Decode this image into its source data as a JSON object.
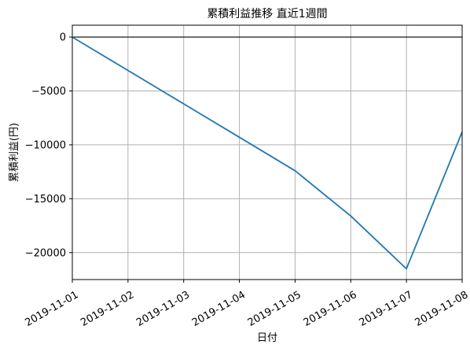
{
  "chart_data": {
    "type": "line",
    "title": "累積利益推移 直近1週間",
    "xlabel": "日付",
    "ylabel": "累積利益(円)",
    "x": [
      "2019-11-01",
      "2019-11-02",
      "2019-11-03",
      "2019-11-04",
      "2019-11-05",
      "2019-11-06",
      "2019-11-07",
      "2019-11-08"
    ],
    "series": [
      {
        "values": [
          0,
          -3100,
          -6200,
          -9300,
          -12400,
          -16600,
          -21500,
          -8800
        ],
        "color": "#1f77b4"
      }
    ],
    "ylim": [
      -22500,
      1100
    ],
    "yticks": [
      0,
      -5000,
      -10000,
      -15000,
      -20000
    ],
    "ytick_labels": [
      "0",
      "−5000",
      "−10000",
      "−15000",
      "−20000"
    ],
    "zero_line": true,
    "zero_line_color": "#000000",
    "grid": true,
    "grid_color": "#b0b0b0",
    "legend": "none"
  }
}
